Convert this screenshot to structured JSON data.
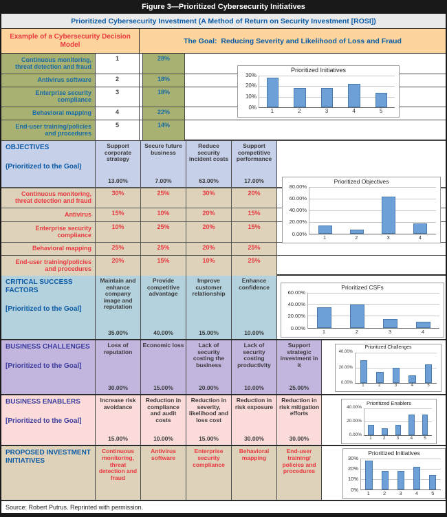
{
  "title_bar": "Figure 3—Prioritized Cybersecurity Initiatives",
  "subtitle_bar": "Prioritized Cybersecurity Investment (A Method of Return on Security Investment [ROSI])",
  "header": {
    "left": "Example of a Cybersecurity Decision Model",
    "right": "The Goal:  Reducing Severity and Likelihood of Loss and Fraud"
  },
  "decision_model": {
    "rows": [
      {
        "label": "Continuous monitoring, threat detection and fraud",
        "rank": "1",
        "pct": "28%"
      },
      {
        "label": "Antivirus software",
        "rank": "2",
        "pct": "18%"
      },
      {
        "label": "Enterprise security compliance",
        "rank": "3",
        "pct": "18%"
      },
      {
        "label": "Behavioral mapping",
        "rank": "4",
        "pct": "22%"
      },
      {
        "label": "End-user training/policies and procedures",
        "rank": "5",
        "pct": "14%"
      }
    ]
  },
  "objectives": {
    "heading": "OBJECTIVES",
    "subheading": "(Prioritized to the Goal)",
    "columns": [
      {
        "label": "Support corporate strategy",
        "pct": "13.00%"
      },
      {
        "label": "Secure future business",
        "pct": "7.00%"
      },
      {
        "label": "Reduce security incident costs",
        "pct": "63.00%"
      },
      {
        "label": "Support competitive performance",
        "pct": "17.00%"
      }
    ],
    "matrix_rows": [
      {
        "label": "Continuous monitoring, threat detection and fraud",
        "values": [
          "30%",
          "25%",
          "30%",
          "20%"
        ]
      },
      {
        "label": "Antivirus",
        "values": [
          "15%",
          "10%",
          "20%",
          "15%"
        ]
      },
      {
        "label": "Enterprise security compliance",
        "values": [
          "10%",
          "25%",
          "20%",
          "15%"
        ]
      },
      {
        "label": "Behavioral mapping",
        "values": [
          "25%",
          "25%",
          "20%",
          "25%"
        ]
      },
      {
        "label": "End-user training/policies and procedures",
        "values": [
          "20%",
          "15%",
          "10%",
          "25%"
        ]
      }
    ]
  },
  "csf": {
    "heading": "CRITICAL SUCCESS FACTORS",
    "subheading": "[Prioritized to the Goal]",
    "columns": [
      {
        "label": "Maintain and enhance company image and reputation",
        "pct": "35.00%"
      },
      {
        "label": "Provide competitive advantage",
        "pct": "40.00%"
      },
      {
        "label": "Improve customer relationship",
        "pct": "15.00%"
      },
      {
        "label": "Enhance confidence",
        "pct": "10.00%"
      }
    ]
  },
  "challenges": {
    "heading": "BUSINESS CHALLENGES",
    "subheading": "[Prioritized to the Goal]",
    "columns": [
      {
        "label": "Loss of reputation",
        "pct": "30.00%"
      },
      {
        "label": "Economic loss",
        "pct": "15.00%"
      },
      {
        "label": "Lack of security costing the business",
        "pct": "20.00%"
      },
      {
        "label": "Lack of security costing productivity",
        "pct": "10.00%"
      },
      {
        "label": "Support strategic investment in it",
        "pct": "25.00%"
      }
    ]
  },
  "enablers": {
    "heading": "BUSINESS ENABLERS",
    "subheading": "[Prioritized to the Goal]",
    "columns": [
      {
        "label": "Increase risk avoidance",
        "pct": "15.00%"
      },
      {
        "label": "Reduction in compliance and audit costs",
        "pct": "10.00%"
      },
      {
        "label": "Reduction in severity, likelihood and loss cost",
        "pct": "15.00%"
      },
      {
        "label": "Reduction in risk exposure",
        "pct": "30.00%"
      },
      {
        "label": "Reduction in risk mitigation efforts",
        "pct": "30.00%"
      }
    ]
  },
  "proposed": {
    "heading": "PROPOSED INVESTMENT INITIATIVES",
    "columns": [
      {
        "label": "Continuous monitoring, threat detection and fraud"
      },
      {
        "label": "Antivirus software"
      },
      {
        "label": "Enterprise security compliance"
      },
      {
        "label": "Behavioral mapping"
      },
      {
        "label": "End-user training/ policies and procedures"
      }
    ]
  },
  "source_line": "Source:  Robert Putrus. Reprinted with permission.",
  "colors": {
    "black_bar": "#191919",
    "gray_band": "#e9e9e9",
    "orange": "#fcd49c",
    "olive": "#a8b172",
    "periwinkle": "#c7d0e9",
    "tan": "#ded2bb",
    "light_blue": "#b4d2de",
    "purple": "#c2b6df",
    "pink": "#fbdcda",
    "blue_heading": "#0b5aa5",
    "indigo_heading": "#3c3c9e",
    "blue_text": "#176ba5",
    "red_text": "#e8393f",
    "dark_text": "#3a3a3a",
    "bar_fill": "#6da0d6",
    "bar_border": "#4879ad"
  },
  "chart_data": [
    {
      "type": "bar",
      "title": "Prioritized Initiatives",
      "categories": [
        "1",
        "2",
        "3",
        "4",
        "5"
      ],
      "values": [
        28,
        18,
        18,
        22,
        14
      ],
      "ylim": [
        0,
        30
      ],
      "yticks": [
        0,
        10,
        20,
        30
      ],
      "ytick_labels": [
        "0%",
        "10%",
        "20%",
        "30%"
      ],
      "grid": true,
      "legend": "none"
    },
    {
      "type": "bar",
      "title": "Prioritized Objectives",
      "categories": [
        "1",
        "2",
        "3",
        "4"
      ],
      "values": [
        13,
        7,
        63,
        17
      ],
      "ylim": [
        0,
        80
      ],
      "yticks": [
        0,
        20,
        40,
        60,
        80
      ],
      "ytick_labels": [
        "0.00%",
        "20.00%",
        "40.00%",
        "60.00%",
        "80.00%"
      ],
      "grid": true,
      "legend": "none"
    },
    {
      "type": "bar",
      "title": "Prioritized CSFs",
      "categories": [
        "1",
        "2",
        "3",
        "4"
      ],
      "values": [
        35,
        40,
        15,
        10
      ],
      "ylim": [
        0,
        60
      ],
      "yticks": [
        0,
        20,
        40,
        60
      ],
      "ytick_labels": [
        "0.00%",
        "20.00%",
        "40.00%",
        "60.00%"
      ],
      "grid": true,
      "legend": "none"
    },
    {
      "type": "bar",
      "title": "Prioritized Challenges",
      "categories": [
        "1",
        "2",
        "3",
        "4",
        "5"
      ],
      "values": [
        30,
        15,
        20,
        10,
        25
      ],
      "ylim": [
        0,
        40
      ],
      "yticks": [
        0,
        20,
        40
      ],
      "ytick_labels": [
        "0.00%",
        "20.00%",
        "40.00%"
      ],
      "grid": true,
      "legend": "none"
    },
    {
      "type": "bar",
      "title": "Prioritized Enablers",
      "categories": [
        "1",
        "2",
        "3",
        "4",
        "5"
      ],
      "values": [
        15,
        10,
        15,
        30,
        30
      ],
      "ylim": [
        0,
        40
      ],
      "yticks": [
        0,
        20,
        40
      ],
      "ytick_labels": [
        "0.00%",
        "20.00%",
        "40.00%"
      ],
      "grid": true,
      "legend": "none"
    },
    {
      "type": "bar",
      "title": "Prioritized Initiatives",
      "categories": [
        "1",
        "2",
        "3",
        "4",
        "5"
      ],
      "values": [
        28,
        18,
        18,
        22,
        14
      ],
      "ylim": [
        0,
        30
      ],
      "yticks": [
        0,
        10,
        20,
        30
      ],
      "ytick_labels": [
        "0%",
        "10%",
        "20%",
        "30%"
      ],
      "grid": true,
      "legend": "none"
    }
  ]
}
